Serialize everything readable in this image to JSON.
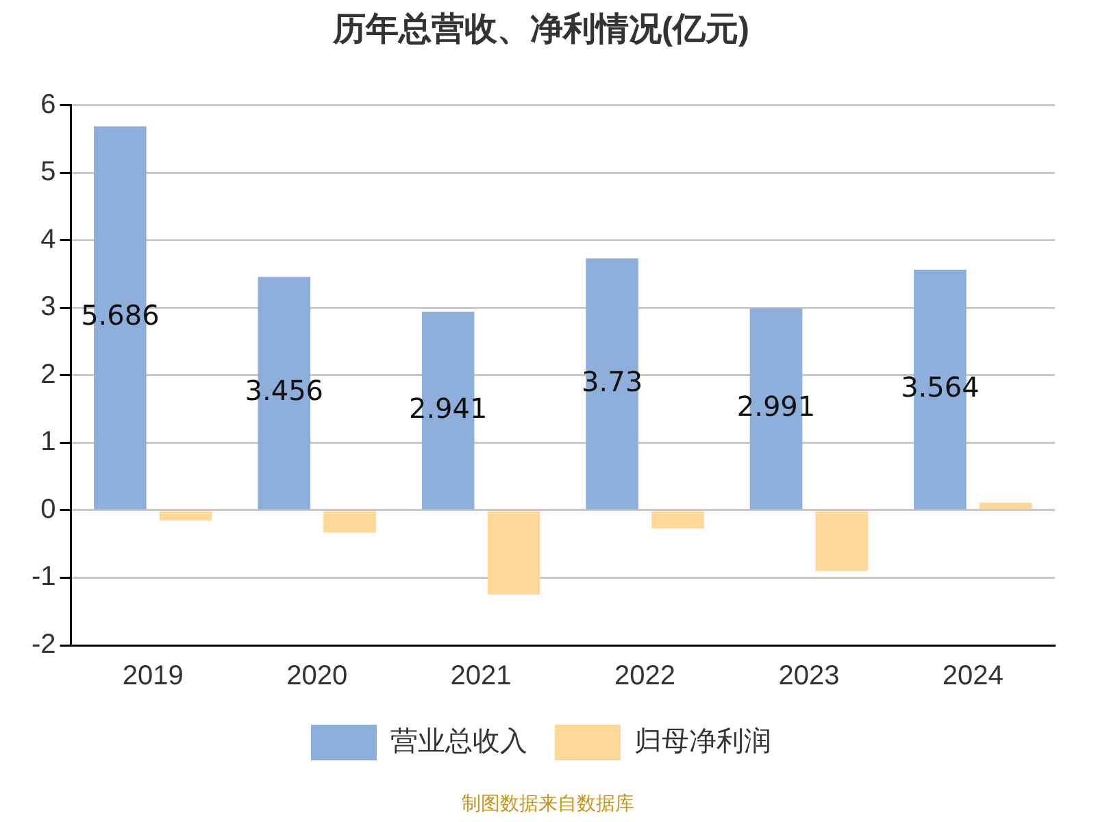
{
  "chart_data": {
    "type": "bar",
    "title": "历年总营收、净利情况(亿元)",
    "categories": [
      "2019",
      "2020",
      "2021",
      "2022",
      "2023",
      "2024"
    ],
    "series": [
      {
        "name": "营业总收入",
        "color": "#8eaedb",
        "values": [
          5.686,
          3.456,
          2.941,
          3.73,
          2.991,
          3.564
        ],
        "value_labels": [
          "5.686",
          "3.456",
          "2.941",
          "3.73",
          "2.991",
          "3.564"
        ]
      },
      {
        "name": "归母净利润",
        "color": "#fed898",
        "values": [
          -0.15,
          -0.33,
          -1.25,
          -0.27,
          -0.9,
          0.11
        ]
      }
    ],
    "ylim": [
      -2,
      6
    ],
    "yticks": [
      -2,
      -1,
      0,
      1,
      2,
      3,
      4,
      5,
      6
    ],
    "grid": "y",
    "legend": "bottom",
    "annotations": [
      "制图数据来自数据库"
    ]
  }
}
